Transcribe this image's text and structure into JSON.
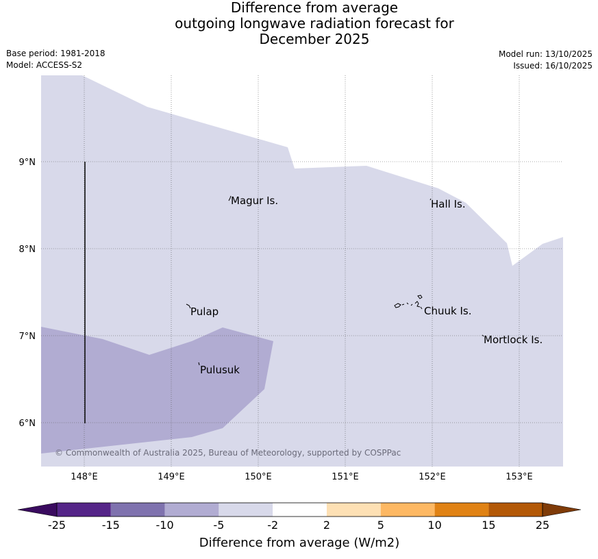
{
  "title": {
    "line1": "Difference from average",
    "line2": "outgoing longwave radiation forecast for",
    "line3": "December 2025"
  },
  "meta": {
    "base_period": "Base period: 1981-2018",
    "model": "Model: ACCESS-S2",
    "model_run": "Model run: 13/10/2025",
    "issued": "Issued: 16/10/2025"
  },
  "map": {
    "lon_ticks": [
      "148°E",
      "149°E",
      "150°E",
      "151°E",
      "152°E",
      "153°E"
    ],
    "lat_ticks": [
      "9°N",
      "8°N",
      "7°N",
      "6°N"
    ],
    "places": {
      "magur": "Magur Is.",
      "hall": "Hall Is.",
      "pulap": "Pulap",
      "chuuk": "Chuuk Is.",
      "mortlock": "Mortlock Is.",
      "pulusuk": "Pulusuk"
    },
    "copyright": "© Commonwealth of Australia 2025, Bureau of Meteorology, supported by COSPPac",
    "region_colors": {
      "minus5_to_minus2": "#d8d9ea",
      "minus10_to_minus5": "#b1acd2"
    }
  },
  "colorbar": {
    "title": "Difference from average (W/m2)",
    "labels": [
      "-25",
      "-15",
      "-10",
      "-5",
      "-2",
      "2",
      "5",
      "10",
      "15",
      "25"
    ],
    "colors": {
      "extend_low": "#3a0b5f",
      "bins": [
        "#552588",
        "#7f72ae",
        "#b1acd2",
        "#d8d9ea",
        "#ffffff",
        "#fde0b4",
        "#fdb863",
        "#e08214",
        "#b35806"
      ],
      "extend_high": "#7f3b08"
    }
  }
}
